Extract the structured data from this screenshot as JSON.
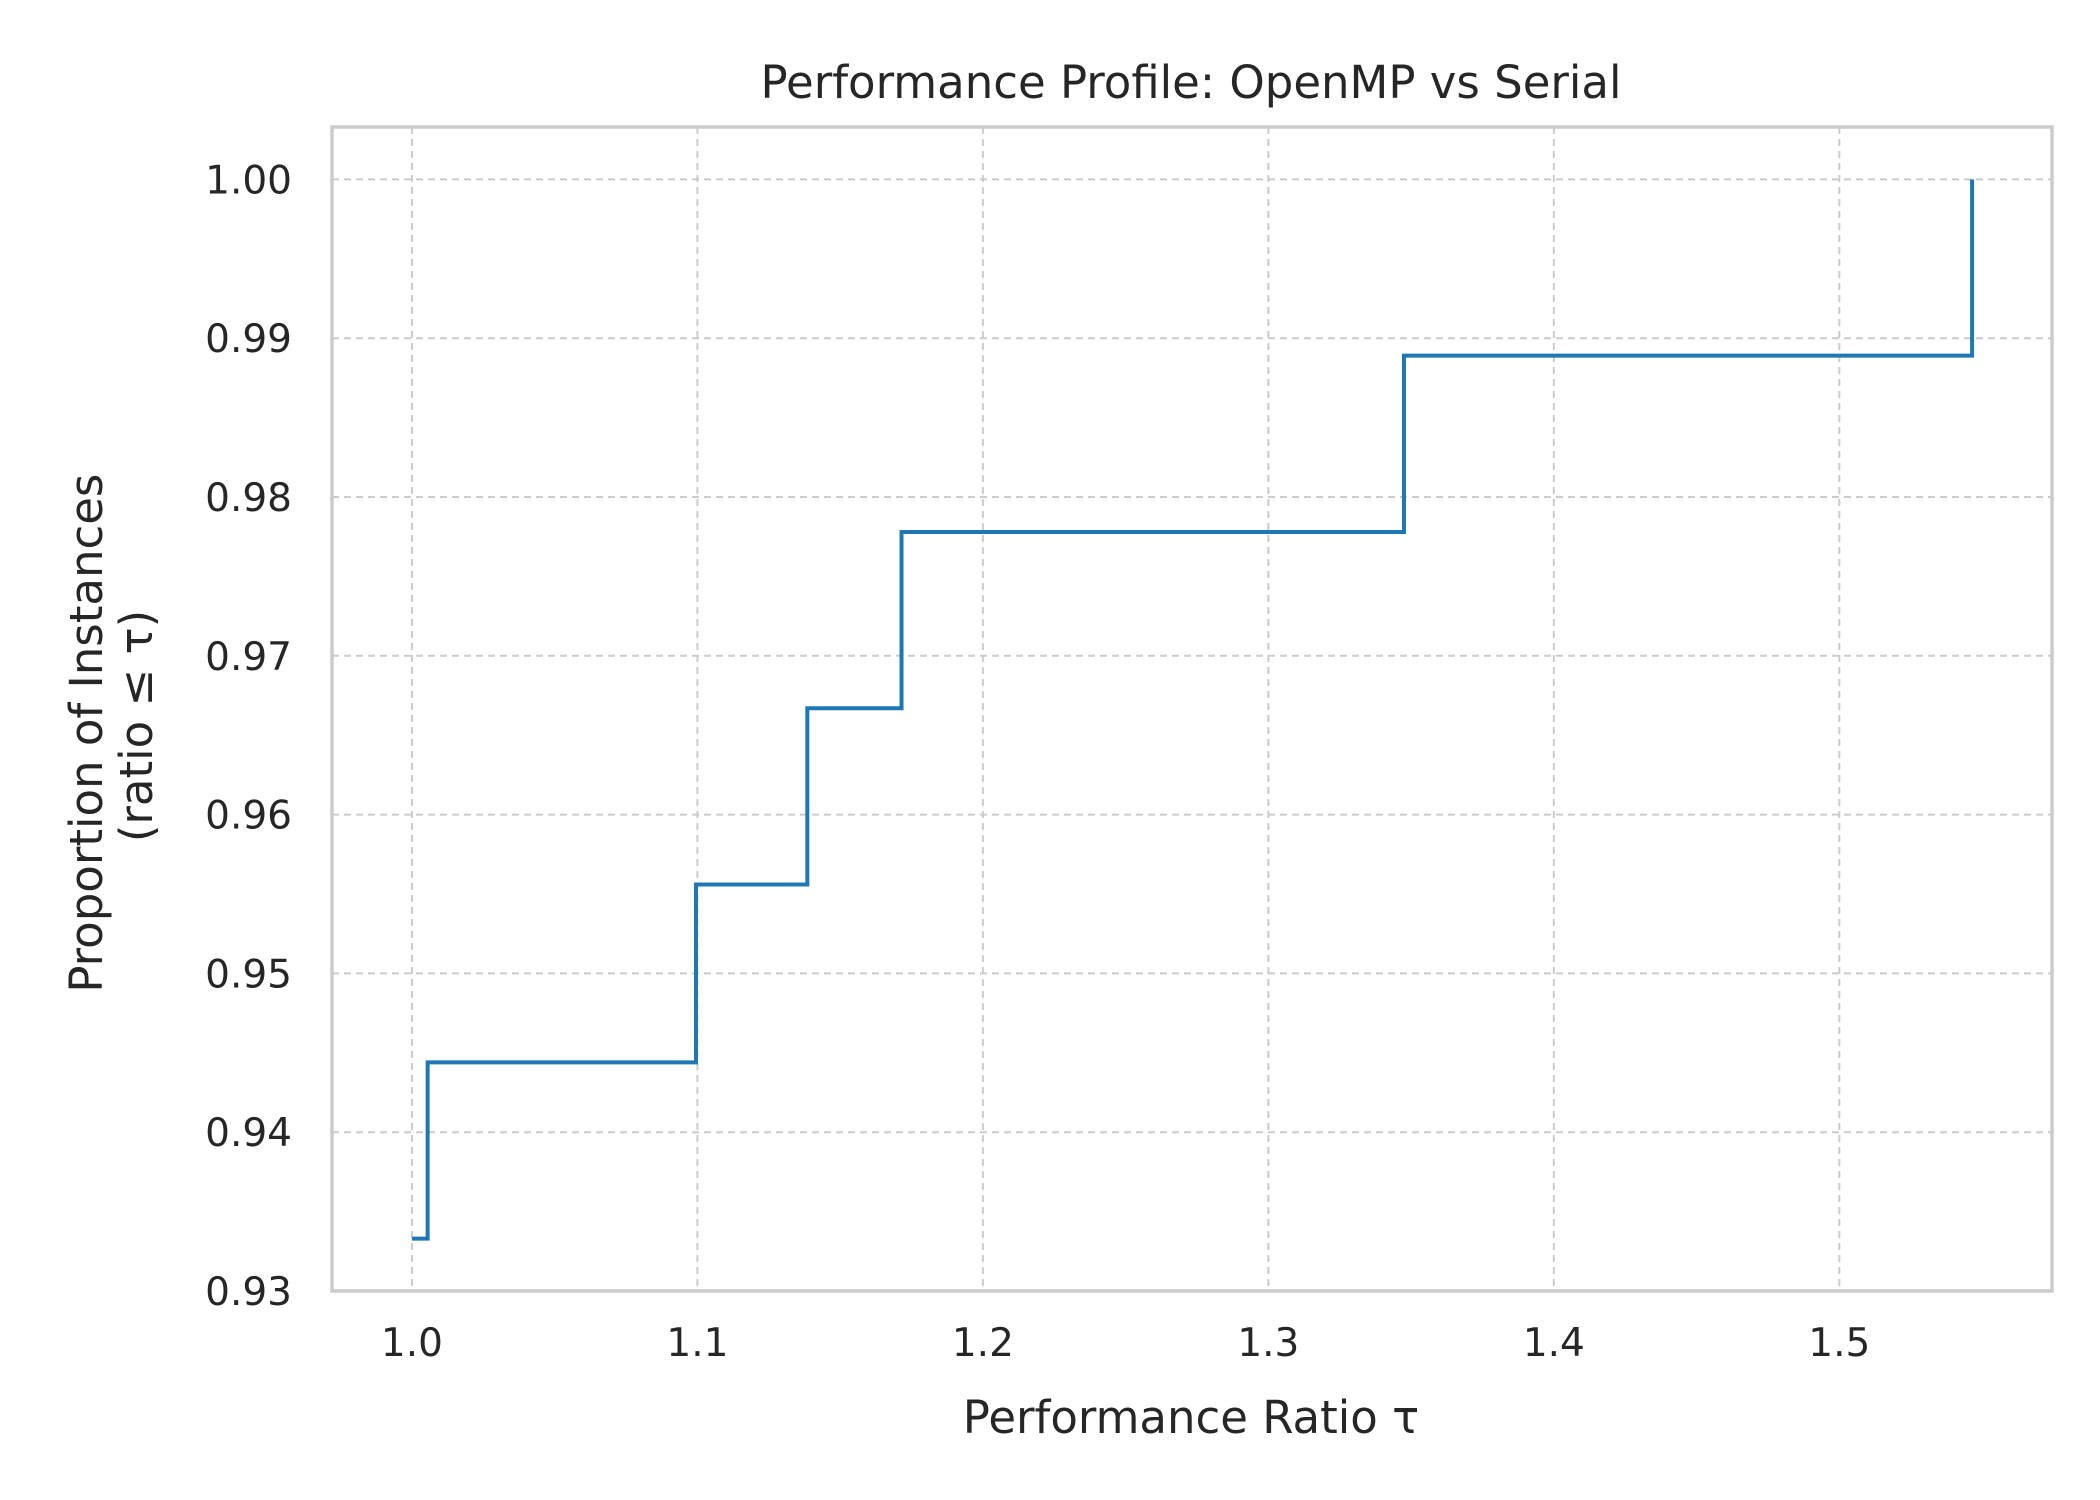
{
  "chart_data": {
    "type": "line",
    "drawstyle": "steps-post",
    "title": "Performance Profile: OpenMP vs Serial",
    "xlabel": "Performance Ratio τ",
    "ylabel_line1": "Proportion of Instances",
    "ylabel_line2": "(ratio ≤ τ)",
    "xlim": [
      0.972,
      1.5745
    ],
    "ylim": [
      0.93,
      1.0033
    ],
    "xticks": [
      1.0,
      1.1,
      1.2,
      1.3,
      1.4,
      1.5
    ],
    "xtick_labels": [
      "1.0",
      "1.1",
      "1.2",
      "1.3",
      "1.4",
      "1.5"
    ],
    "yticks": [
      0.93,
      0.94,
      0.95,
      0.96,
      0.97,
      0.98,
      0.99,
      1.0
    ],
    "ytick_labels": [
      "0.93",
      "0.94",
      "0.95",
      "0.96",
      "0.97",
      "0.98",
      "0.99",
      "1.00"
    ],
    "grid": true,
    "legend": false,
    "series": [
      {
        "color": "#1f77b4",
        "x": [
          1.0,
          1.0055,
          1.0995,
          1.1385,
          1.1715,
          1.3475,
          1.5465
        ],
        "y": [
          0.9333,
          0.9444,
          0.9556,
          0.9667,
          0.9778,
          0.9889,
          1.0
        ]
      }
    ]
  }
}
